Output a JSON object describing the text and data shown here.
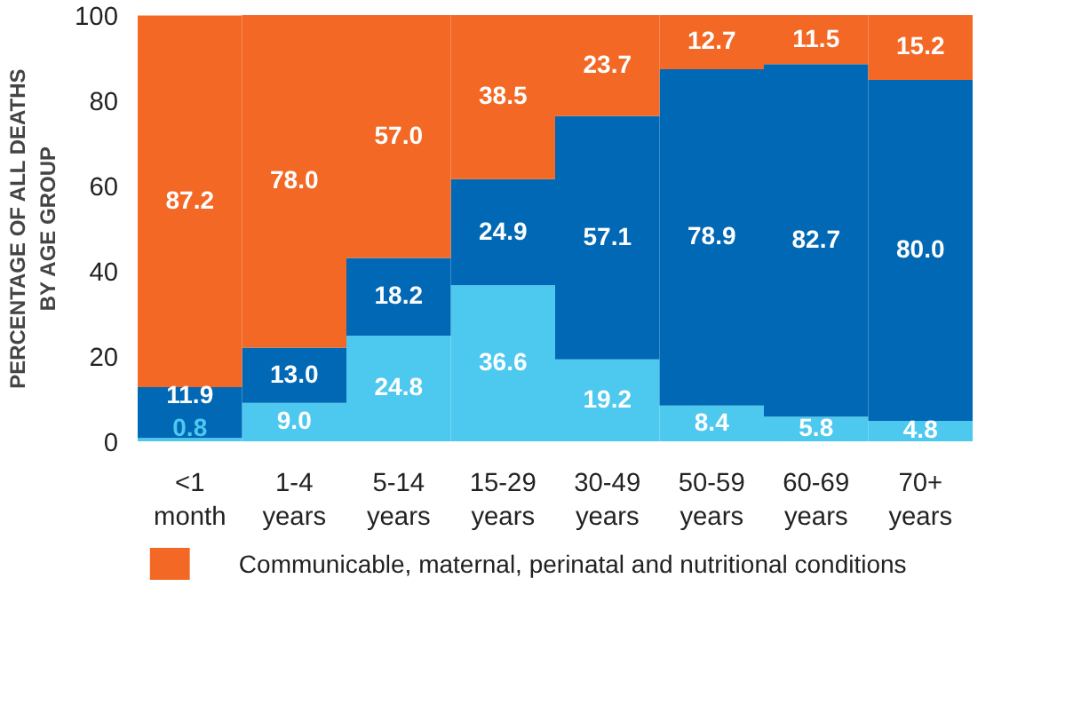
{
  "chart_data": {
    "type": "bar",
    "stacked": true,
    "ylabel": "PERCENTAGE OF ALL DEATHS\nBY AGE GROUP",
    "categories": [
      "<1\nmonth",
      "1-4\nyears",
      "5-14\nyears",
      "15-29\nyears",
      "30-49\nyears",
      "50-59\nyears",
      "60-69\nyears",
      "70+\nyears"
    ],
    "series": [
      {
        "color": "#4dc8ee",
        "values": [
          0.8,
          9.0,
          24.8,
          36.6,
          19.2,
          8.4,
          5.8,
          4.8
        ],
        "value_labels": [
          "0.8",
          "9.0",
          "24.8",
          "36.6",
          "19.2",
          "8.4",
          "5.8",
          "4.8"
        ]
      },
      {
        "color": "#0068b4",
        "values": [
          11.9,
          13.0,
          18.2,
          24.9,
          57.1,
          78.9,
          82.7,
          80.0
        ],
        "value_labels": [
          "11.9",
          "13.0",
          "18.2",
          "24.9",
          "57.1",
          "78.9",
          "82.7",
          "80.0"
        ]
      },
      {
        "name": "Communicable, maternal, perinatal and nutritional conditions",
        "color": "#f26824",
        "values": [
          87.2,
          78.0,
          57.0,
          38.5,
          23.7,
          12.7,
          11.5,
          15.2
        ],
        "value_labels": [
          "87.2",
          "78.0",
          "57.0",
          "38.5",
          "23.7",
          "12.7",
          "11.5",
          "15.2"
        ]
      }
    ],
    "ylim": [
      0,
      100
    ],
    "yticks": [
      0,
      20,
      40,
      60,
      80,
      100
    ],
    "legend": "bottom"
  }
}
